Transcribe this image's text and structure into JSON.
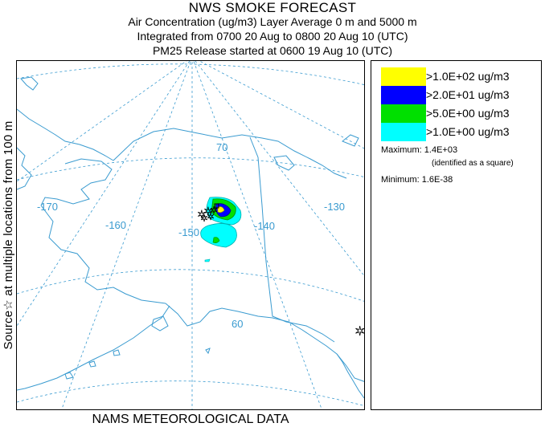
{
  "header": {
    "title": "NWS SMOKE FORECAST",
    "line2": "Air Concentration (ug/m3) Layer Average    0 m and  5000 m",
    "line3": "Integrated from 0700 20 Aug to 0800 20 Aug 10 (UTC)",
    "line4": "PM25 Release started at 0600 19 Aug 10 (UTC)"
  },
  "side_label": "Source☆  at multiple locations  from   100 m",
  "footer": "NAMS METEOROLOGICAL DATA",
  "legend": {
    "items": [
      {
        "color": "#ffff00",
        "label": ">1.0E+02 ug/m3"
      },
      {
        "color": "#0000ff",
        "label": ">2.0E+01 ug/m3"
      },
      {
        "color": "#00e000",
        "label": ">5.0E+00 ug/m3"
      },
      {
        "color": "#00ffff",
        "label": ">1.0E+00 ug/m3"
      }
    ],
    "maximum_label": "Maximum:",
    "maximum_value": "1.4E+03",
    "maximum_note": "(identified as a square)",
    "minimum_label": "Minimum:",
    "minimum_value": "1.6E-38"
  },
  "map": {
    "graticule_labels": {
      "lon_170": "-170",
      "lon_160": "-160",
      "lon_150": "-150",
      "lon_140": "-140",
      "lon_130": "-130",
      "lat_70": "70",
      "lat_60": "60"
    },
    "colors": {
      "graticule": "#3a9bd0",
      "coastline": "#3a9bd0",
      "source_marker": "#000000"
    }
  }
}
